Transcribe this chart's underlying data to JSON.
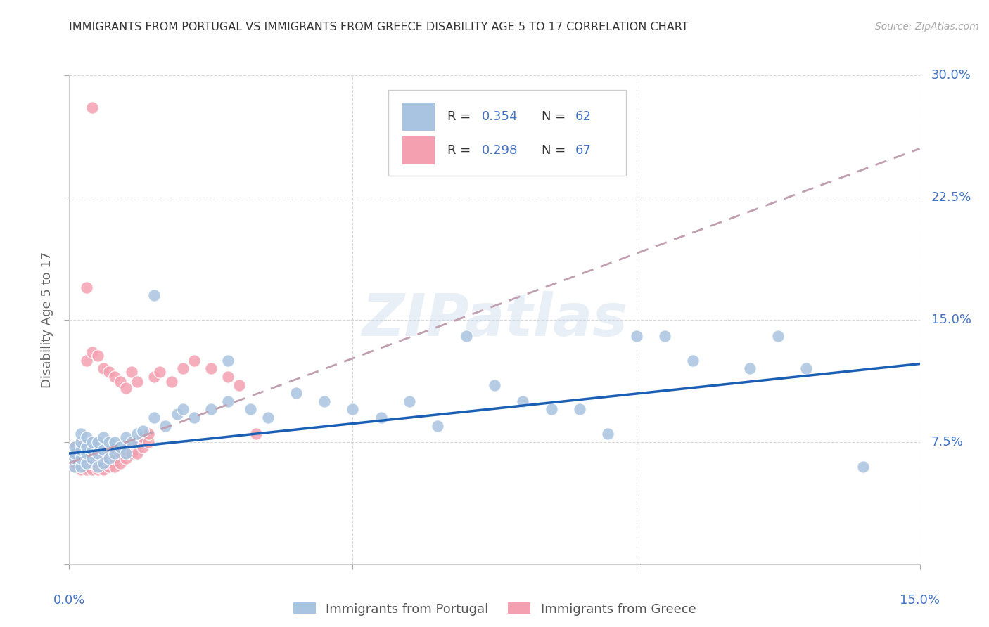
{
  "title": "IMMIGRANTS FROM PORTUGAL VS IMMIGRANTS FROM GREECE DISABILITY AGE 5 TO 17 CORRELATION CHART",
  "source": "Source: ZipAtlas.com",
  "ylabel": "Disability Age 5 to 17",
  "xlim": [
    0.0,
    0.15
  ],
  "ylim": [
    0.0,
    0.3
  ],
  "xticks": [
    0.0,
    0.05,
    0.1,
    0.15
  ],
  "yticks": [
    0.0,
    0.075,
    0.15,
    0.225,
    0.3
  ],
  "ytick_labels": [
    "",
    "7.5%",
    "15.0%",
    "22.5%",
    "30.0%"
  ],
  "portugal_color": "#a8c4e0",
  "greece_color": "#f4a0b0",
  "portugal_line_color": "#1a5fb4",
  "greece_line_color": "#c0a0b0",
  "grid_color": "#d8d8d8",
  "watermark": "ZIPatlas",
  "legend_R_portugal": "0.354",
  "legend_N_portugal": "62",
  "legend_R_greece": "0.298",
  "legend_N_greece": "67",
  "portugal_scatter_x": [
    0.001,
    0.001,
    0.001,
    0.001,
    0.002,
    0.002,
    0.002,
    0.002,
    0.002,
    0.003,
    0.003,
    0.003,
    0.003,
    0.004,
    0.004,
    0.004,
    0.005,
    0.005,
    0.005,
    0.006,
    0.006,
    0.006,
    0.007,
    0.007,
    0.008,
    0.008,
    0.009,
    0.01,
    0.01,
    0.011,
    0.012,
    0.013,
    0.015,
    0.017,
    0.019,
    0.02,
    0.022,
    0.025,
    0.028,
    0.032,
    0.035,
    0.04,
    0.045,
    0.05,
    0.055,
    0.06,
    0.065,
    0.07,
    0.075,
    0.08,
    0.085,
    0.09,
    0.095,
    0.1,
    0.105,
    0.11,
    0.12,
    0.125,
    0.13,
    0.14,
    0.028,
    0.015
  ],
  "portugal_scatter_y": [
    0.06,
    0.065,
    0.068,
    0.072,
    0.06,
    0.065,
    0.07,
    0.075,
    0.08,
    0.062,
    0.068,
    0.072,
    0.078,
    0.065,
    0.07,
    0.075,
    0.06,
    0.068,
    0.075,
    0.062,
    0.07,
    0.078,
    0.065,
    0.075,
    0.068,
    0.075,
    0.072,
    0.068,
    0.078,
    0.075,
    0.08,
    0.082,
    0.09,
    0.085,
    0.092,
    0.095,
    0.09,
    0.095,
    0.1,
    0.095,
    0.09,
    0.105,
    0.1,
    0.095,
    0.09,
    0.1,
    0.085,
    0.14,
    0.11,
    0.1,
    0.095,
    0.095,
    0.08,
    0.14,
    0.14,
    0.125,
    0.12,
    0.14,
    0.12,
    0.06,
    0.125,
    0.165
  ],
  "greece_scatter_x": [
    0.001,
    0.001,
    0.001,
    0.001,
    0.001,
    0.002,
    0.002,
    0.002,
    0.002,
    0.002,
    0.002,
    0.003,
    0.003,
    0.003,
    0.003,
    0.003,
    0.004,
    0.004,
    0.004,
    0.004,
    0.005,
    0.005,
    0.005,
    0.005,
    0.006,
    0.006,
    0.006,
    0.006,
    0.007,
    0.007,
    0.007,
    0.008,
    0.008,
    0.008,
    0.009,
    0.009,
    0.01,
    0.01,
    0.011,
    0.011,
    0.012,
    0.012,
    0.013,
    0.013,
    0.014,
    0.014,
    0.015,
    0.016,
    0.018,
    0.02,
    0.022,
    0.025,
    0.028,
    0.03,
    0.033,
    0.003,
    0.004,
    0.005,
    0.006,
    0.007,
    0.008,
    0.009,
    0.01,
    0.011,
    0.012,
    0.003,
    0.004
  ],
  "greece_scatter_y": [
    0.06,
    0.062,
    0.065,
    0.068,
    0.072,
    0.058,
    0.062,
    0.065,
    0.068,
    0.072,
    0.075,
    0.058,
    0.062,
    0.065,
    0.068,
    0.072,
    0.058,
    0.062,
    0.065,
    0.07,
    0.058,
    0.062,
    0.066,
    0.07,
    0.058,
    0.062,
    0.068,
    0.072,
    0.06,
    0.065,
    0.07,
    0.06,
    0.065,
    0.072,
    0.062,
    0.068,
    0.065,
    0.07,
    0.068,
    0.075,
    0.068,
    0.075,
    0.072,
    0.078,
    0.075,
    0.08,
    0.115,
    0.118,
    0.112,
    0.12,
    0.125,
    0.12,
    0.115,
    0.11,
    0.08,
    0.125,
    0.13,
    0.128,
    0.12,
    0.118,
    0.115,
    0.112,
    0.108,
    0.118,
    0.112,
    0.17,
    0.28
  ],
  "portugal_trend_x": [
    0.0,
    0.15
  ],
  "portugal_trend_y": [
    0.068,
    0.123
  ],
  "greece_trend_x": [
    0.0,
    0.15
  ],
  "greece_trend_y": [
    0.062,
    0.255
  ]
}
